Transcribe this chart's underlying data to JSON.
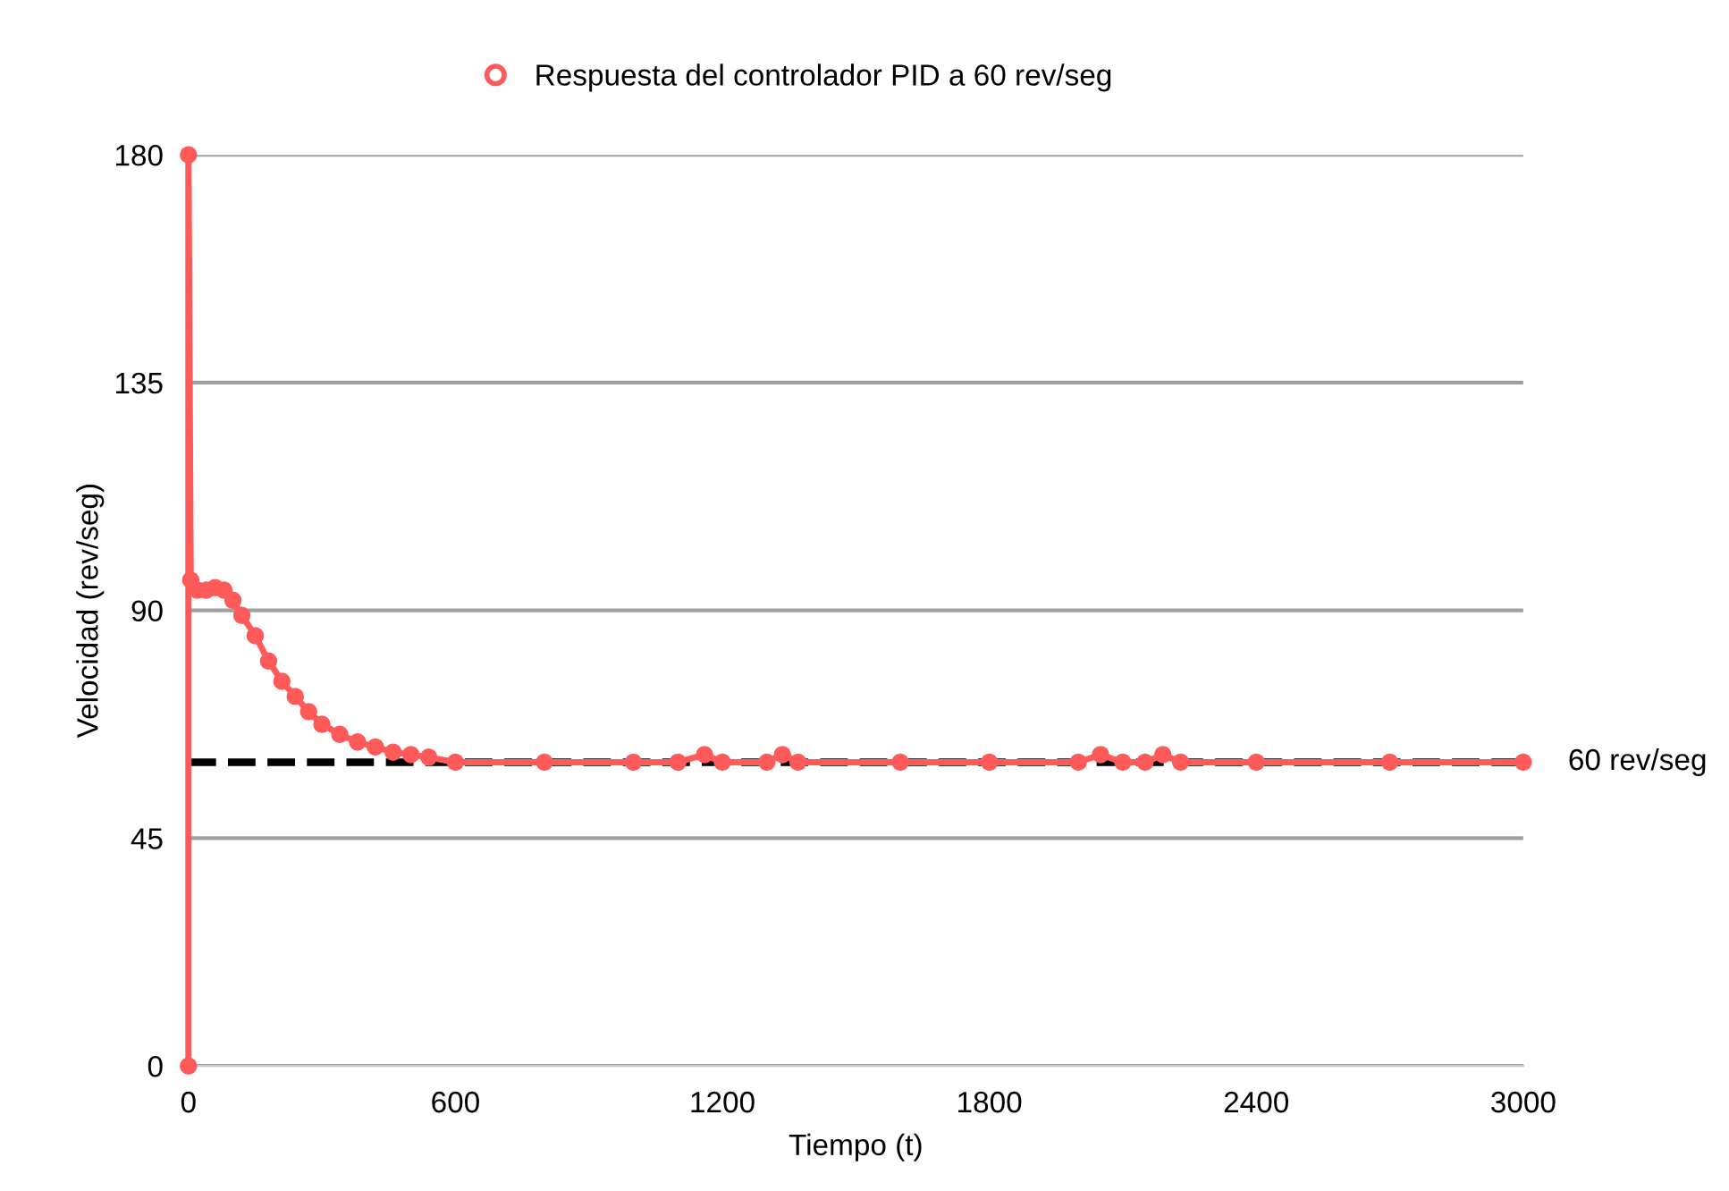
{
  "chart_data": {
    "type": "line",
    "xlabel": "Tiempo (t)",
    "ylabel": "Velocidad (rev/seg)",
    "series": [
      {
        "name": "Respuesta del controlador PID a 60 rev/seg",
        "color": "#ff5a5a",
        "x": [
          0,
          0,
          5,
          20,
          40,
          60,
          80,
          100,
          120,
          150,
          180,
          210,
          240,
          270,
          300,
          340,
          380,
          420,
          460,
          500,
          540,
          600,
          800,
          1000,
          1100,
          1160,
          1200,
          1300,
          1335,
          1370,
          1600,
          1800,
          2000,
          2050,
          2100,
          2150,
          2190,
          2230,
          2400,
          2700,
          3000
        ],
        "values": [
          0,
          180,
          96,
          94,
          94,
          94.5,
          94,
          92,
          89,
          85,
          80,
          76,
          73,
          70,
          67.5,
          65.5,
          64,
          63,
          62,
          61.5,
          61,
          60,
          60,
          60,
          60,
          61.5,
          60,
          60,
          61.5,
          60,
          60,
          60,
          60,
          61.5,
          60,
          60,
          61.5,
          60,
          60,
          60,
          60
        ]
      }
    ],
    "xlim": [
      0,
      3000
    ],
    "ylim": [
      0,
      180
    ],
    "xticks": [
      0,
      600,
      1200,
      1800,
      2400,
      3000
    ],
    "yticks": [
      0,
      45,
      90,
      135,
      180
    ],
    "grid": "y",
    "legend": "top",
    "marker": "circle",
    "line_style": "solid",
    "ref_lines": [
      {
        "axis": "y",
        "value": 60,
        "label": "60 rev/seg",
        "color": "#000000",
        "line_style": "dashed"
      }
    ]
  }
}
